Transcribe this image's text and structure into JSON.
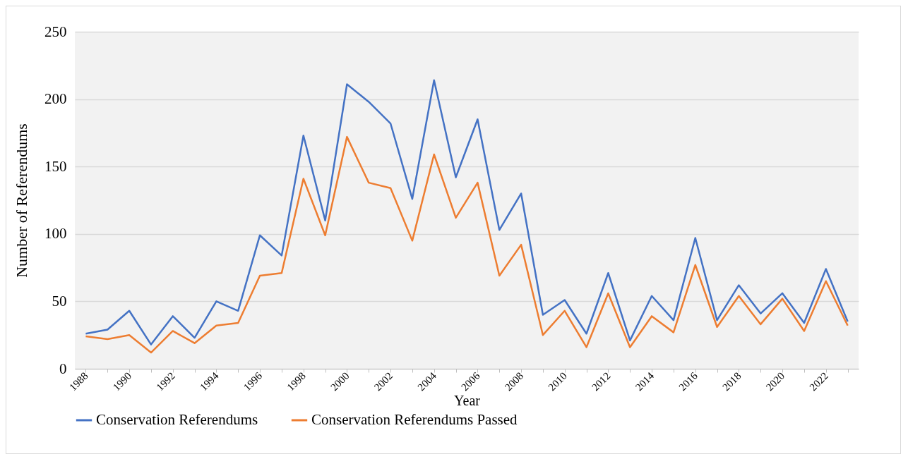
{
  "chart_data": {
    "type": "line",
    "xlabel": "Year",
    "ylabel": "Number of Referendums",
    "categories": [
      "1988",
      null,
      "1990",
      null,
      "1992",
      null,
      "1994",
      null,
      "1996",
      null,
      "1998",
      null,
      "2000",
      null,
      "2002",
      null,
      "2004",
      null,
      "2006",
      null,
      "2008",
      null,
      "2010",
      null,
      "2012",
      null,
      "2014",
      null,
      "2016",
      null,
      "2018",
      null,
      "2020",
      null,
      "2022",
      null
    ],
    "series": [
      {
        "name": "Conservation Referendums",
        "color": "#4472c4",
        "values": [
          26,
          29,
          43,
          18,
          39,
          23,
          50,
          43,
          99,
          84,
          173,
          110,
          211,
          198,
          182,
          126,
          214,
          142,
          185,
          103,
          130,
          40,
          51,
          26,
          71,
          21,
          54,
          36,
          97,
          36,
          62,
          41,
          56,
          34,
          74,
          35
        ]
      },
      {
        "name": "Conservation Referendums Passed",
        "color": "#ed7d31",
        "values": [
          24,
          22,
          25,
          12,
          28,
          19,
          32,
          34,
          69,
          71,
          141,
          99,
          172,
          138,
          134,
          95,
          159,
          112,
          138,
          69,
          92,
          25,
          43,
          16,
          56,
          16,
          39,
          27,
          77,
          31,
          54,
          33,
          52,
          28,
          65,
          32
        ]
      }
    ],
    "ylim": [
      0,
      250
    ],
    "yticks": [
      0,
      50,
      100,
      150,
      200,
      250
    ],
    "grid": "y",
    "legend": "bottom",
    "marker": "none",
    "line_style": "solid"
  }
}
